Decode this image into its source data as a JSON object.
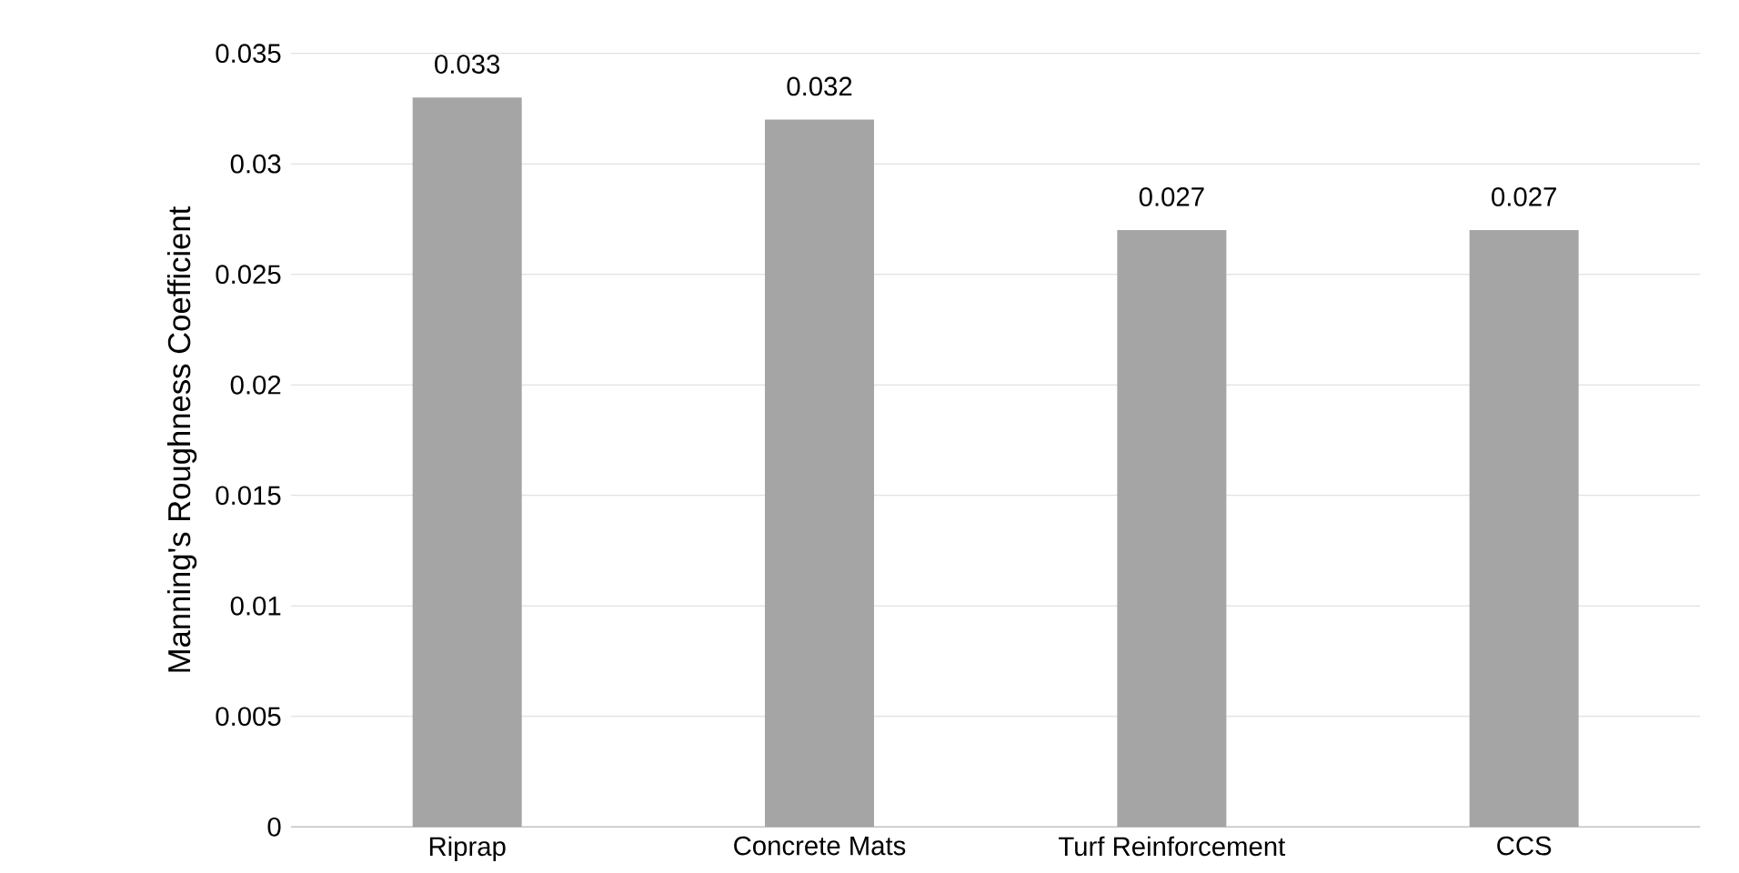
{
  "chart_data": {
    "type": "bar",
    "ylabel": "Manning's Roughness Coefficient",
    "categories": [
      "Riprap",
      "Concrete Mats",
      "Turf Reinforcement",
      "CCS"
    ],
    "values": [
      0.033,
      0.032,
      0.027,
      0.027
    ],
    "color": "#a5a5a5",
    "ylim": [
      0,
      0.035
    ],
    "yticks": [
      0,
      0.005,
      0.01,
      0.015,
      0.02,
      0.025,
      0.03,
      0.035
    ],
    "grid": "y",
    "data_labels": true
  }
}
